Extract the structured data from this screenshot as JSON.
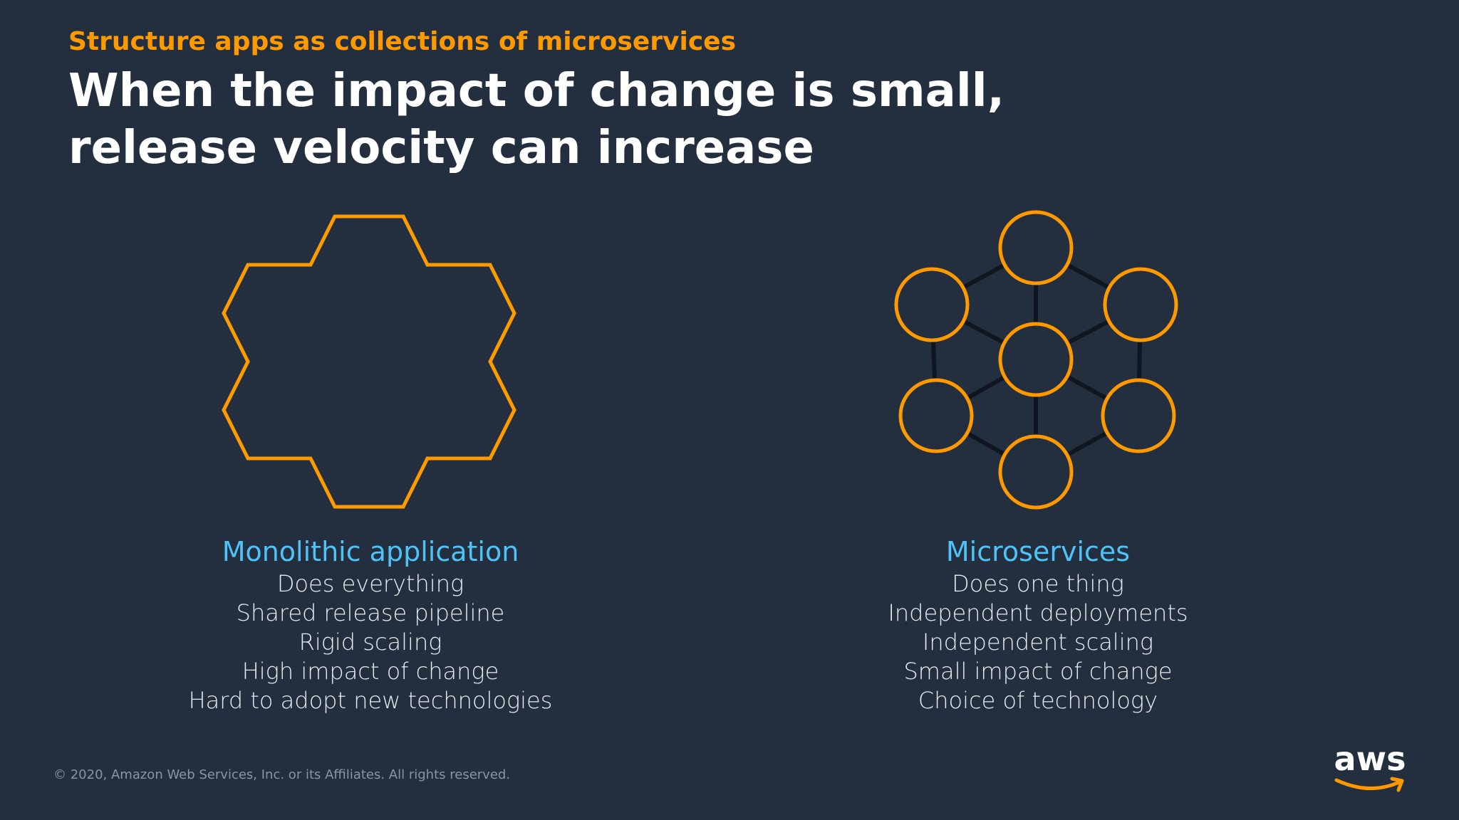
{
  "slide": {
    "kicker": "Structure apps as collections of microservices",
    "headline_line1": "When the impact of change is small,",
    "headline_line2": "release velocity can increase"
  },
  "monolith": {
    "icon": "hexagon-cluster-outline",
    "title": "Monolithic application",
    "items": [
      "Does everything",
      "Shared release pipeline",
      "Rigid scaling",
      "High impact of change",
      "Hard to adopt new technologies"
    ]
  },
  "microservices": {
    "icon": "connected-circles-network",
    "title": "Microservices",
    "items": [
      "Does one thing",
      "Independent deployments",
      "Independent scaling",
      "Small impact of change",
      "Choice of technology"
    ]
  },
  "footer": {
    "copyright": "© 2020, Amazon Web Services, Inc. or its Affiliates. All rights reserved."
  },
  "brand": {
    "logo_text": "aws",
    "logo_icon": "aws-smile-arrow"
  },
  "colors": {
    "background": "#232f3e",
    "accent_orange": "#ff9900",
    "title_blue": "#4fc3f7",
    "text_light": "#e8ebee",
    "connector_dark": "#0f1620"
  }
}
